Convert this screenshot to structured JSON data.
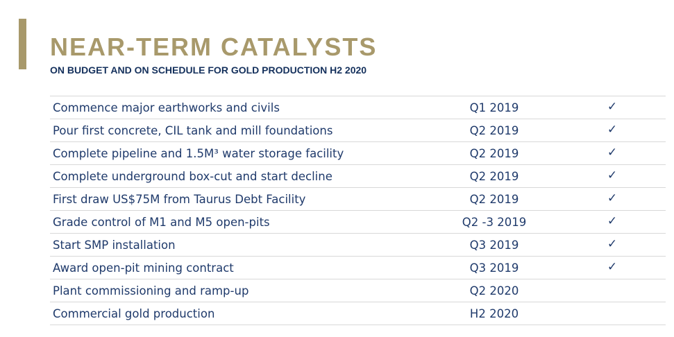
{
  "header": {
    "title": "NEAR-TERM CATALYSTS",
    "subtitle": "ON BUDGET AND ON SCHEDULE FOR GOLD PRODUCTION H2 2020"
  },
  "colors": {
    "accent_gold": "#a8996b",
    "navy": "#14305c",
    "row_text": "#1f3a6b",
    "divider": "#d8d8d8"
  },
  "catalysts": [
    {
      "task": "Commence major earthworks and civils",
      "date": "Q1 2019",
      "check": "✓"
    },
    {
      "task": "Pour first concrete, CIL tank and mill foundations",
      "date": "Q2 2019",
      "check": "✓"
    },
    {
      "task": "Complete pipeline and 1.5M³ water storage facility",
      "date": "Q2 2019",
      "check": "✓"
    },
    {
      "task": "Complete underground box-cut and start decline",
      "date": "Q2 2019",
      "check": "✓"
    },
    {
      "task": "First draw US$75M from Taurus Debt Facility",
      "date": "Q2 2019",
      "check": "✓"
    },
    {
      "task": "Grade control of M1 and M5 open-pits",
      "date": "Q2 -3 2019",
      "check": "✓"
    },
    {
      "task": "Start SMP installation",
      "date": "Q3 2019",
      "check": "✓"
    },
    {
      "task": "Award open-pit mining contract",
      "date": "Q3 2019",
      "check": "✓"
    },
    {
      "task": "Plant commissioning and ramp-up",
      "date": "Q2 2020",
      "check": ""
    },
    {
      "task": "Commercial gold production",
      "date": "H2 2020",
      "check": ""
    }
  ]
}
